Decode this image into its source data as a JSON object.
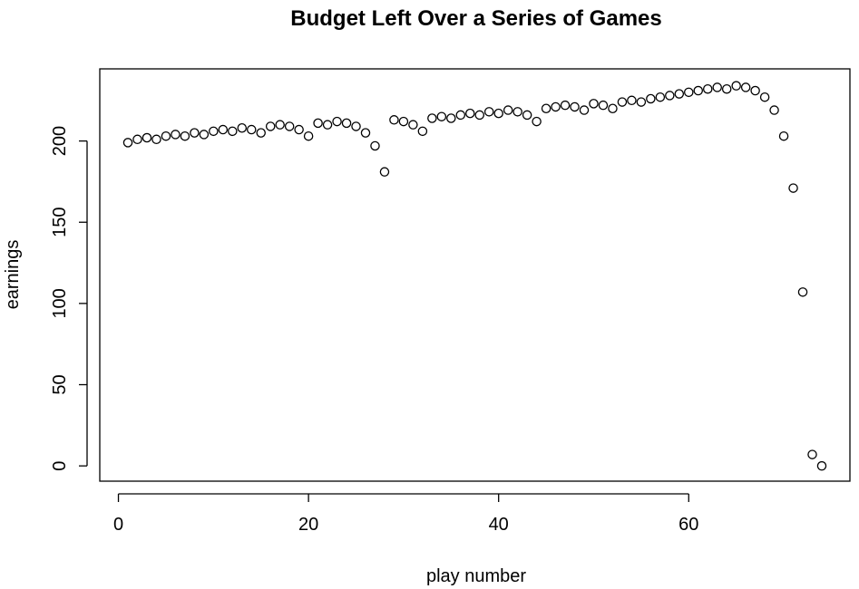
{
  "chart_data": {
    "type": "scatter",
    "title": "Budget Left Over a Series of Games",
    "xlabel": "play number",
    "ylabel": "earnings",
    "xlim": [
      -1.96,
      76.96
    ],
    "ylim": [
      -9.4,
      244.4
    ],
    "x_ticks": [
      0,
      20,
      40,
      60
    ],
    "y_ticks": [
      0,
      50,
      100,
      150,
      200
    ],
    "grid": false,
    "legend": "none",
    "x": [
      1,
      2,
      3,
      4,
      5,
      6,
      7,
      8,
      9,
      10,
      11,
      12,
      13,
      14,
      15,
      16,
      17,
      18,
      19,
      20,
      21,
      22,
      23,
      24,
      25,
      26,
      27,
      28,
      29,
      30,
      31,
      32,
      33,
      34,
      35,
      36,
      37,
      38,
      39,
      40,
      41,
      42,
      43,
      44,
      45,
      46,
      47,
      48,
      49,
      50,
      51,
      52,
      53,
      54,
      55,
      56,
      57,
      58,
      59,
      60,
      61,
      62,
      63,
      64,
      65,
      66,
      67,
      68,
      69,
      70,
      71,
      72,
      73,
      74
    ],
    "y": [
      199,
      201,
      202,
      201,
      203,
      204,
      203,
      205,
      204,
      206,
      207,
      206,
      208,
      207,
      205,
      209,
      210,
      209,
      207,
      203,
      211,
      210,
      212,
      211,
      209,
      205,
      197,
      181,
      213,
      212,
      210,
      206,
      214,
      215,
      214,
      216,
      217,
      216,
      218,
      217,
      219,
      218,
      216,
      212,
      220,
      221,
      222,
      221,
      219,
      223,
      222,
      220,
      224,
      225,
      224,
      226,
      227,
      228,
      229,
      230,
      231,
      232,
      233,
      232,
      234,
      233,
      231,
      227,
      219,
      203,
      171,
      107,
      7,
      0
    ]
  }
}
